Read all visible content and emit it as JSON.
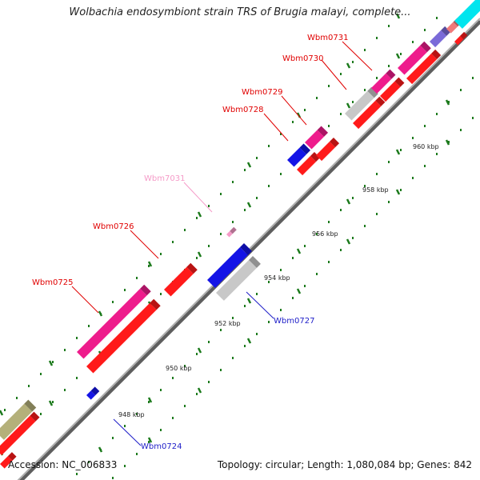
{
  "header": {
    "title": "Wolbachia endosymbiont strain TRS of Brugia malayi, complete..."
  },
  "footer": {
    "accession": "Accession: NC_006833",
    "summary": "Topology: circular; Length: 1,080,084 bp; Genes: 842"
  },
  "scale": {
    "ticks": [
      "948 kbp",
      "950 kbp",
      "952 kbp",
      "954 kbp",
      "956 kbp",
      "958 kbp",
      "960 kbp"
    ]
  },
  "genes": [
    {
      "name": "Wbm0731",
      "color": "#e8001c"
    },
    {
      "name": "Wbm0730",
      "color": "#e8001c"
    },
    {
      "name": "Wbm0729",
      "color": "#e8001c"
    },
    {
      "name": "Wbm0728",
      "color": "#e8001c"
    },
    {
      "name": "Wbm7031",
      "color": "#f59bc8"
    },
    {
      "name": "Wbm0726",
      "color": "#e8001c"
    },
    {
      "name": "Wbm0725",
      "color": "#e8001c"
    },
    {
      "name": "Wbm0727",
      "color": "#1d1dc8"
    },
    {
      "name": "Wbm0724",
      "color": "#1d1dc8"
    }
  ],
  "colors": {
    "backbone": "#7a7a7a",
    "tick_dots": "#1c7a1c",
    "feature_red": "#ff1a1a",
    "feature_pink": "#ee1c8c",
    "feature_blue": "#1414e6",
    "feature_grey": "#c8c8c8",
    "feature_olive": "#b4b07a",
    "feature_cyan": "#00e5ee",
    "feature_purple": "#7a6ad8"
  }
}
